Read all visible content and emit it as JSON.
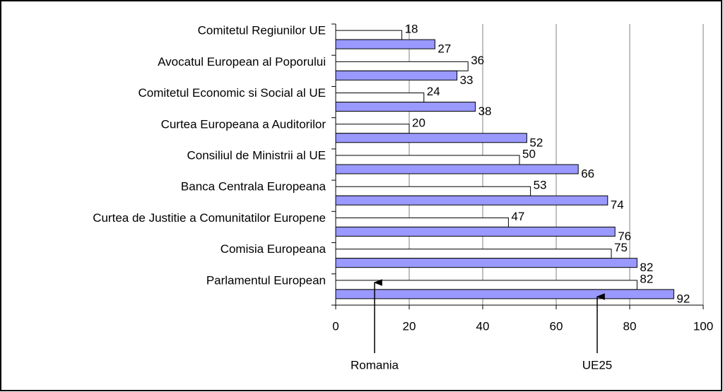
{
  "chart_data": {
    "type": "hbar",
    "categories": [
      "Comitetul Regiunilor UE",
      "Avocatul European al Poporului",
      "Comitetul Economic si Social al UE",
      "Curtea Europeana a Auditorilor",
      "Consiliul de Ministrii al UE",
      "Banca Centrala Europeana",
      "Curtea de Justitie a Comunitatilor Europene",
      "Comisia Europeana",
      "Parlamentul European"
    ],
    "series": [
      {
        "name": "Romania",
        "color": "#ffffff",
        "values": [
          18,
          36,
          24,
          20,
          50,
          53,
          47,
          75,
          82
        ]
      },
      {
        "name": "UE25",
        "color": "#9999ff",
        "values": [
          27,
          33,
          38,
          52,
          66,
          74,
          76,
          82,
          92
        ]
      }
    ],
    "xlim": [
      0,
      100
    ],
    "xticks": [
      0,
      20,
      40,
      60,
      80,
      100
    ],
    "grid": true
  }
}
